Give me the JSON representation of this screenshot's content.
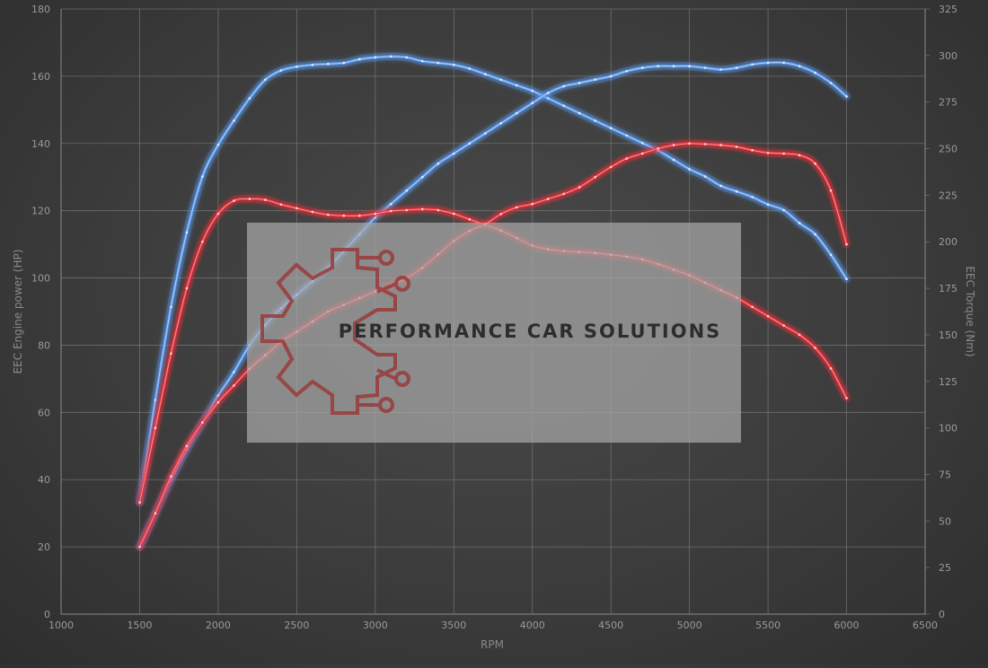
{
  "chart_data": {
    "type": "line",
    "xlabel": "RPM",
    "ylabel_left": "EEC Engine power (HP)",
    "ylabel_right": "EEC Torque (Nm)",
    "xlim": [
      1000,
      6500
    ],
    "ylim_left": [
      0,
      180
    ],
    "ylim_right": [
      0,
      325
    ],
    "x_ticks": [
      1000,
      1500,
      2000,
      2500,
      3000,
      3500,
      4000,
      4500,
      5000,
      5500,
      6000,
      6500
    ],
    "y_left_ticks": [
      0,
      20,
      40,
      60,
      80,
      100,
      120,
      140,
      160,
      180
    ],
    "y_right_ticks": [
      0,
      25,
      50,
      75,
      100,
      125,
      150,
      175,
      200,
      225,
      250,
      275,
      300,
      325
    ],
    "grid": true,
    "colors": {
      "blue": "#5b9bef",
      "red": "#e8303a",
      "grid": "#7a7a7a"
    },
    "series": [
      {
        "color": "#5b9bef",
        "axis": "right",
        "kind": "torque",
        "x": [
          1500,
          1600,
          1700,
          1800,
          1900,
          2000,
          2100,
          2200,
          2300,
          2400,
          2500,
          2600,
          2700,
          2800,
          2900,
          3000,
          3100,
          3200,
          3300,
          3400,
          3500,
          3600,
          3700,
          3800,
          3900,
          4000,
          4100,
          4200,
          4300,
          4400,
          4500,
          4600,
          4700,
          4800,
          4900,
          5000,
          5100,
          5200,
          5300,
          5400,
          5500,
          5600,
          5700,
          5800,
          5900,
          6000
        ],
        "y": [
          60,
          115,
          165,
          205,
          235,
          252,
          265,
          277,
          287,
          292,
          294,
          295,
          295.5,
          296,
          298,
          299,
          299.5,
          299,
          297,
          296,
          295,
          293,
          290,
          287,
          284,
          281,
          277,
          273,
          269,
          265,
          261,
          257,
          253,
          249,
          244,
          239,
          235,
          230,
          227,
          224,
          220,
          217,
          210,
          204,
          193,
          180
        ]
      },
      {
        "color": "#5b9bef",
        "axis": "left",
        "kind": "power",
        "x": [
          1500,
          1600,
          1700,
          1800,
          1900,
          2000,
          2100,
          2200,
          2300,
          2400,
          2500,
          2600,
          2700,
          2800,
          2900,
          3000,
          3100,
          3200,
          3300,
          3400,
          3500,
          3600,
          3700,
          3800,
          3900,
          4000,
          4100,
          4200,
          4300,
          4400,
          4500,
          4600,
          4700,
          4800,
          4900,
          5000,
          5100,
          5200,
          5300,
          5400,
          5500,
          5600,
          5700,
          5800,
          5900,
          6000
        ],
        "y": [
          20,
          30,
          40,
          49,
          57,
          65,
          72,
          80,
          86,
          91,
          95,
          99,
          103,
          108,
          113,
          118,
          122,
          126,
          130,
          134,
          137,
          140,
          143,
          146,
          149,
          152,
          155,
          157,
          158,
          159,
          160,
          161.5,
          162.5,
          163,
          163,
          163,
          162.5,
          162,
          162.5,
          163.5,
          164,
          164,
          163,
          161,
          158,
          154
        ]
      },
      {
        "color": "#e8303a",
        "axis": "right",
        "kind": "torque",
        "x": [
          1500,
          1600,
          1700,
          1800,
          1900,
          2000,
          2100,
          2200,
          2300,
          2400,
          2500,
          2600,
          2700,
          2800,
          2900,
          3000,
          3100,
          3200,
          3300,
          3400,
          3500,
          3600,
          3700,
          3800,
          3900,
          4000,
          4100,
          4200,
          4300,
          4400,
          4500,
          4600,
          4700,
          4800,
          4900,
          5000,
          5100,
          5200,
          5300,
          5400,
          5500,
          5600,
          5700,
          5800,
          5900,
          6000
        ],
        "y": [
          60,
          100,
          140,
          175,
          200,
          215,
          222,
          223,
          222.5,
          220,
          218,
          216,
          214.5,
          214,
          214,
          215,
          216.5,
          217,
          217.5,
          217,
          215,
          212,
          209,
          206,
          202,
          198,
          196,
          195,
          194.5,
          194,
          193,
          192,
          190.5,
          188,
          185,
          182,
          178,
          174,
          170,
          165,
          160,
          155,
          150,
          143,
          132,
          116
        ]
      },
      {
        "color": "#e8303a",
        "axis": "left",
        "kind": "power",
        "x": [
          1500,
          1600,
          1700,
          1800,
          1900,
          2000,
          2100,
          2200,
          2300,
          2400,
          2500,
          2600,
          2700,
          2800,
          2900,
          3000,
          3100,
          3200,
          3300,
          3400,
          3500,
          3600,
          3700,
          3800,
          3900,
          4000,
          4100,
          4200,
          4300,
          4400,
          4500,
          4600,
          4700,
          4800,
          4900,
          5000,
          5100,
          5200,
          5300,
          5400,
          5500,
          5600,
          5700,
          5800,
          5900,
          6000
        ],
        "y": [
          20,
          30,
          41,
          50,
          57,
          63,
          68,
          73,
          77,
          81,
          84,
          87,
          90,
          92,
          94,
          96,
          98,
          100,
          103,
          107,
          111,
          114,
          116,
          119,
          121,
          122,
          123.5,
          125,
          127,
          130,
          133,
          135.5,
          137,
          138.5,
          139.5,
          140,
          139.8,
          139.5,
          139,
          138,
          137.2,
          137,
          136.5,
          134,
          126,
          110
        ]
      }
    ]
  },
  "watermark": {
    "brand": "PERFORMANCE CAR SOLUTIONS",
    "logo_icon": "gear-circuit-icon",
    "logo_color": "#9a3a3a"
  }
}
